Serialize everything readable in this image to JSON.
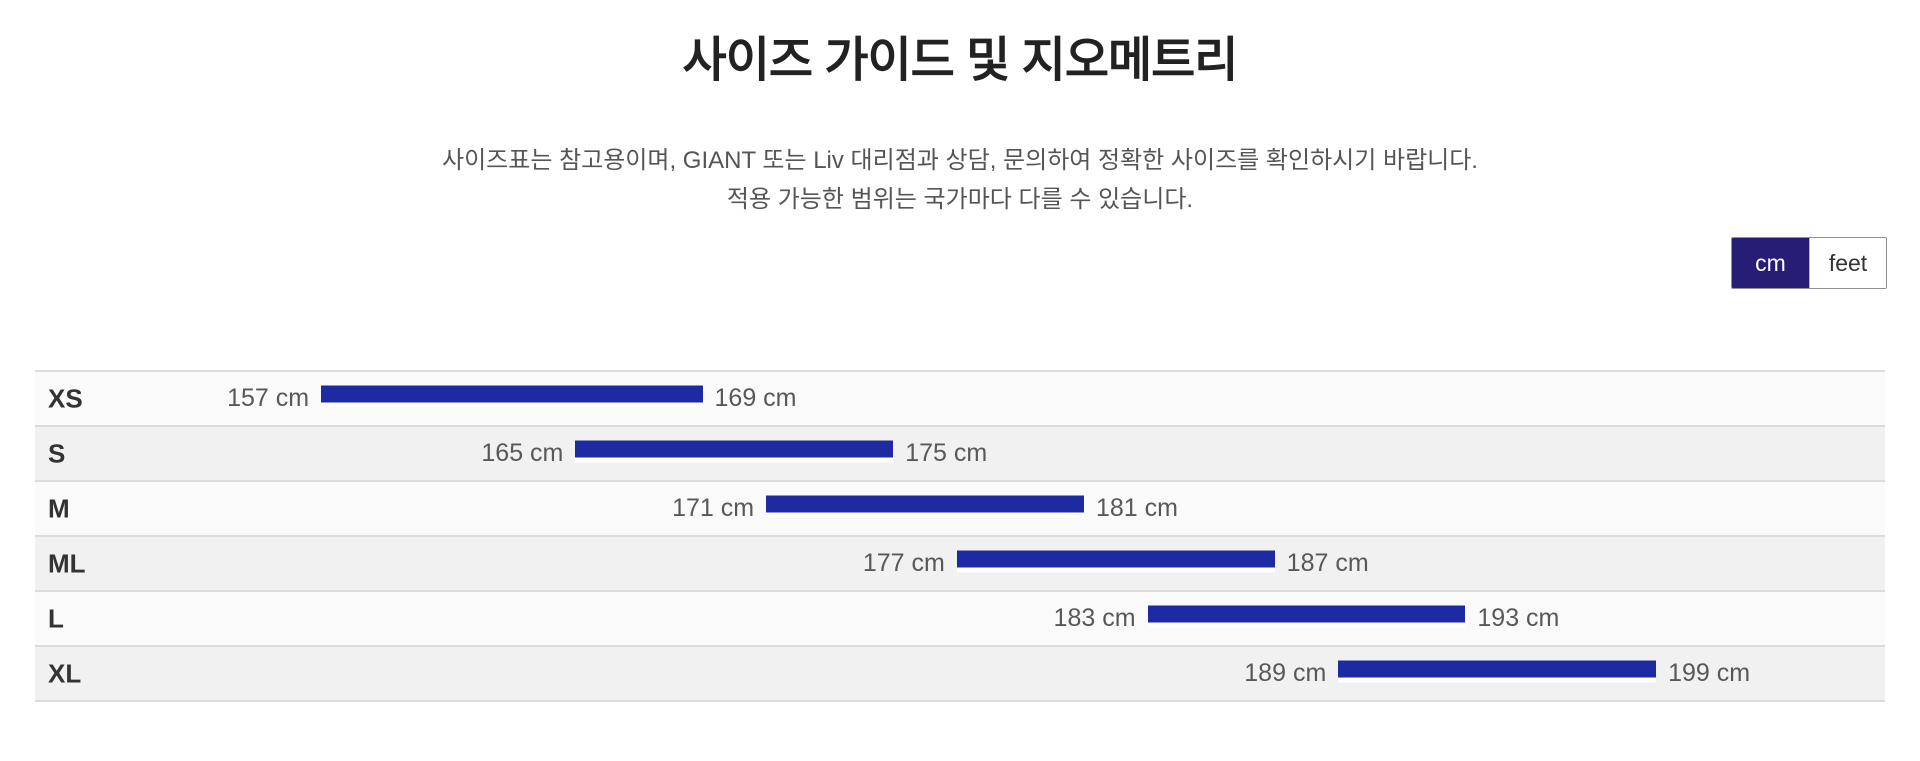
{
  "header": {
    "title": "사이즈 가이드 및 지오메트리",
    "note_line1": "사이즈표는 참고용이며, GIANT 또는 Liv 대리점과 상담, 문의하여 정확한 사이즈를 확인하시기 바랍니다.",
    "note_line2": "적용 가능한 범위는 국가마다 다를 수 있습니다."
  },
  "unit_toggle": {
    "options": [
      {
        "label": "cm",
        "selected": true
      },
      {
        "label": "feet",
        "selected": false
      }
    ],
    "active_bg": "#251e74",
    "active_text": "#ffffff"
  },
  "chart_data": {
    "type": "bar",
    "orientation": "horizontal",
    "title": "",
    "unit": "cm",
    "x_domain_cm": [
      148,
      206.2
    ],
    "bar_color": "#1e2aa2",
    "row_colors": [
      "#fafafa",
      "#f1f1f1"
    ],
    "grid": false,
    "categories": [
      "XS",
      "S",
      "M",
      "ML",
      "L",
      "XL"
    ],
    "rows": [
      {
        "size": "XS",
        "min_cm": 157,
        "max_cm": 169,
        "min_label": "157 cm",
        "max_label": "169 cm"
      },
      {
        "size": "S",
        "min_cm": 165,
        "max_cm": 175,
        "min_label": "165 cm",
        "max_label": "175 cm"
      },
      {
        "size": "M",
        "min_cm": 171,
        "max_cm": 181,
        "min_label": "171 cm",
        "max_label": "181 cm"
      },
      {
        "size": "ML",
        "min_cm": 177,
        "max_cm": 187,
        "min_label": "177 cm",
        "max_label": "187 cm"
      },
      {
        "size": "L",
        "min_cm": 183,
        "max_cm": 193,
        "min_label": "183 cm",
        "max_label": "193 cm"
      },
      {
        "size": "XL",
        "min_cm": 189,
        "max_cm": 199,
        "min_label": "189 cm",
        "max_label": "199 cm"
      }
    ]
  }
}
